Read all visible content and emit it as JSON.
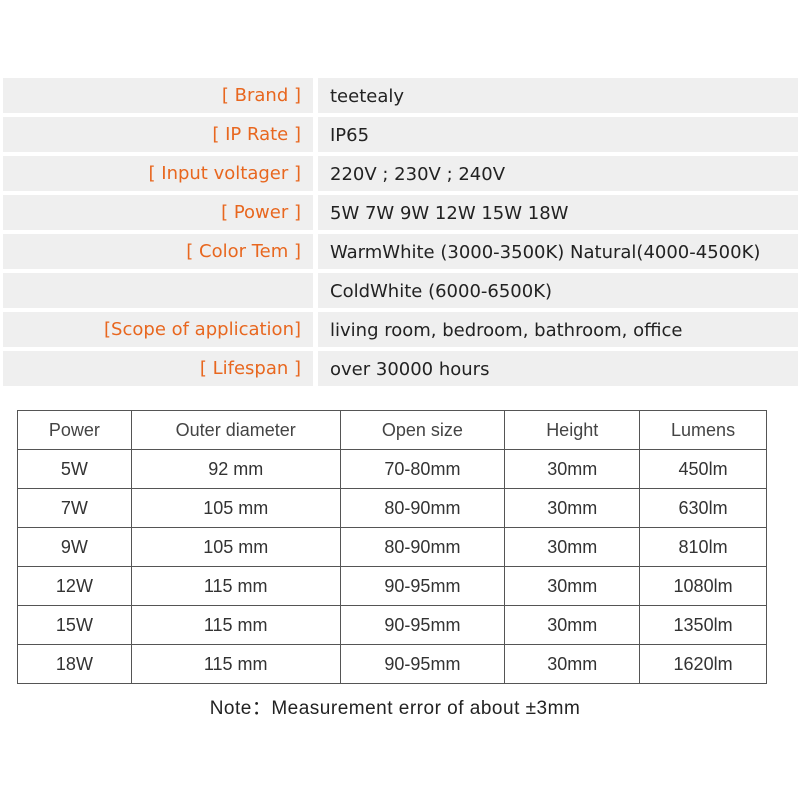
{
  "specs": [
    {
      "label": "[ Brand ]",
      "value": "teetealy"
    },
    {
      "label": "[ IP Rate ]",
      "value": "IP65"
    },
    {
      "label": "[ Input voltager ]",
      "value": "220V ; 230V ; 240V"
    },
    {
      "label": "[ Power ]",
      "value": "5W 7W 9W 12W 15W 18W"
    },
    {
      "label": "[ Color Tem ]",
      "value": "WarmWhite (3000-3500K) Natural(4000-4500K)"
    },
    {
      "label": "",
      "value": "ColdWhite (6000-6500K)"
    },
    {
      "label": "[Scope of application]",
      "value": "living room, bedroom, bathroom, office"
    },
    {
      "label": "[ Lifespan ]",
      "value": "over 30000 hours"
    }
  ],
  "colors": {
    "label": "#e8671f",
    "cell_bg": "#efefef"
  },
  "dimensions": {
    "headers": [
      "Power",
      "Outer diameter",
      "Open size",
      "Height",
      "Lumens"
    ],
    "rows": [
      [
        "5W",
        "92 mm",
        "70-80mm",
        "30mm",
        "450lm"
      ],
      [
        "7W",
        "105 mm",
        "80-90mm",
        "30mm",
        "630lm"
      ],
      [
        "9W",
        "105 mm",
        "80-90mm",
        "30mm",
        "810lm"
      ],
      [
        "12W",
        "115 mm",
        "90-95mm",
        "30mm",
        "1080lm"
      ],
      [
        "15W",
        "115 mm",
        "90-95mm",
        "30mm",
        "1350lm"
      ],
      [
        "18W",
        "115 mm",
        "90-95mm",
        "30mm",
        "1620lm"
      ]
    ]
  },
  "note": "Note：Measurement error of about ±3mm"
}
